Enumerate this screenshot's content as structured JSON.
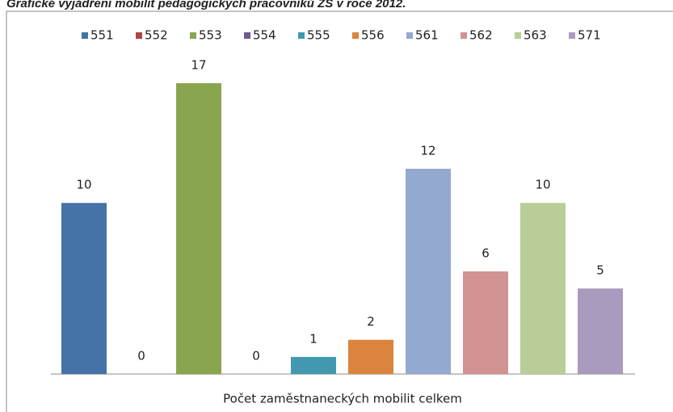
{
  "chart_data": {
    "type": "bar",
    "title": "Grafické vyjádření mobilit pedagogických pracovníků ZŠ v roce 2012.",
    "categories": [
      "Počet zaměstnaneckých mobilit celkem"
    ],
    "series": [
      {
        "name": "551",
        "color": "#4572a7",
        "values": [
          10
        ]
      },
      {
        "name": "552",
        "color": "#aa4643",
        "values": [
          0
        ]
      },
      {
        "name": "553",
        "color": "#89a54e",
        "values": [
          17
        ]
      },
      {
        "name": "554",
        "color": "#71588f",
        "values": [
          0
        ]
      },
      {
        "name": "555",
        "color": "#4198af",
        "values": [
          1
        ]
      },
      {
        "name": "556",
        "color": "#db843d",
        "values": [
          2
        ]
      },
      {
        "name": "561",
        "color": "#93a9cf",
        "values": [
          12
        ]
      },
      {
        "name": "562",
        "color": "#d19392",
        "values": [
          6
        ]
      },
      {
        "name": "563",
        "color": "#b9cd96",
        "values": [
          10
        ]
      },
      {
        "name": "571",
        "color": "#a99bbd",
        "values": [
          5
        ]
      }
    ],
    "ylim": [
      0,
      17
    ],
    "legend": "top"
  }
}
